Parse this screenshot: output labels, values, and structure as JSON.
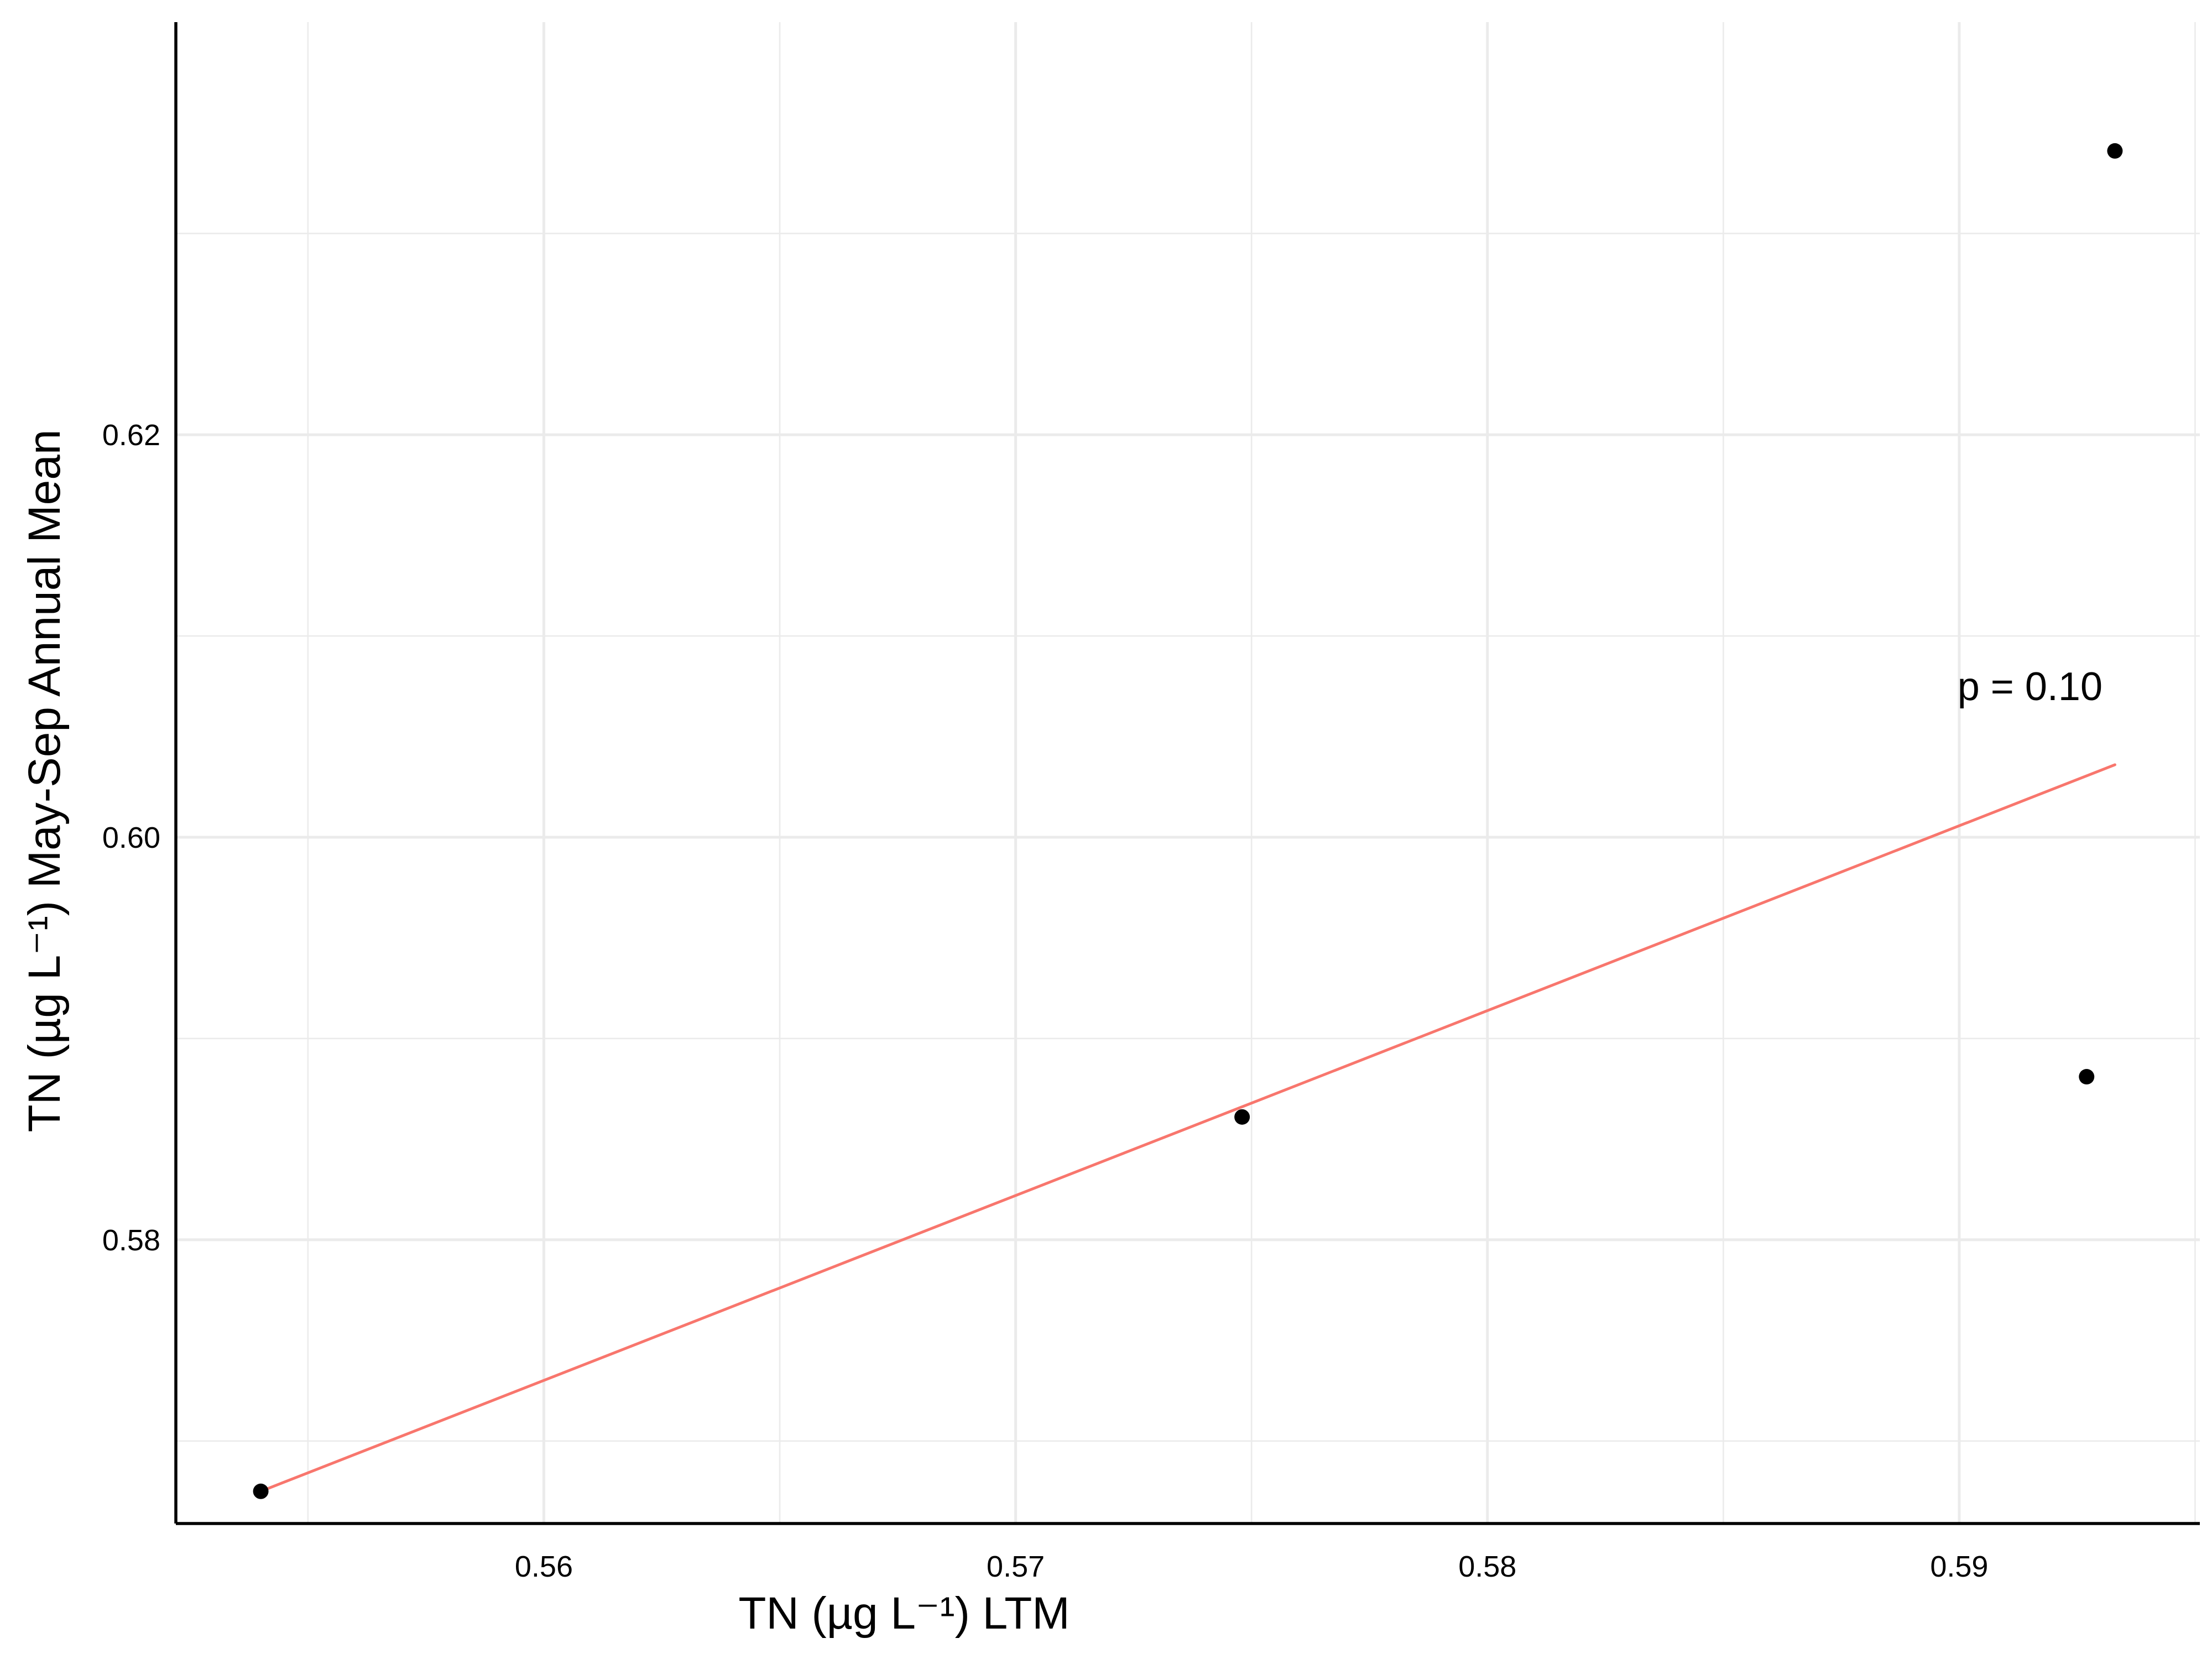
{
  "chart_data": {
    "type": "scatter",
    "xlabel": "TN (µg L⁻¹) LTM",
    "ylabel": "TN (µg L⁻¹) May-Sep Annual Mean",
    "xlim": [
      0.5522,
      0.5951
    ],
    "ylim": [
      0.5659,
      0.6405
    ],
    "x_ticks": [
      0.56,
      0.57,
      0.58,
      0.59
    ],
    "x_tick_labels": [
      "0.56",
      "0.57",
      "0.58",
      "0.59"
    ],
    "y_ticks": [
      0.58,
      0.6,
      0.62
    ],
    "y_tick_labels": [
      "0.58",
      "0.60",
      "0.62"
    ],
    "grid": true,
    "points": [
      {
        "x": 0.554,
        "y": 0.5675
      },
      {
        "x": 0.5748,
        "y": 0.5861
      },
      {
        "x": 0.5927,
        "y": 0.5881
      },
      {
        "x": 0.5933,
        "y": 0.6341
      }
    ],
    "fit_line": {
      "color": "#F8766D",
      "x": [
        0.554,
        0.5933
      ],
      "y": [
        0.5675,
        0.6036
      ]
    },
    "point_color": "#000000",
    "annotation": {
      "text": "p = 0.10",
      "x": 0.5915,
      "y": 0.6075
    }
  }
}
